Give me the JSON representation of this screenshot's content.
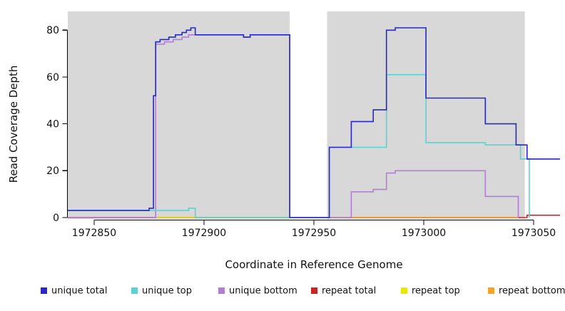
{
  "chart_data": {
    "type": "line",
    "subtype": "step",
    "title": "",
    "xlabel": "Coordinate in Reference Genome",
    "ylabel": "Read Coverage Depth",
    "xlim": [
      1972838,
      1973062
    ],
    "ylim": [
      0,
      88
    ],
    "xticks": [
      1972850,
      1972900,
      1972950,
      1973000,
      1973050
    ],
    "yticks": [
      0,
      20,
      40,
      60,
      80
    ],
    "grid": false,
    "legend_position": "bottom",
    "background_color": "#d8d8d8",
    "axis_color": "#000000",
    "shaded_regions": [
      {
        "from": 1972838,
        "to": 1972939
      },
      {
        "from": 1972956,
        "to": 1973046
      }
    ],
    "series": [
      {
        "name": "unique total",
        "color": "#2727cc",
        "points": [
          [
            1972838,
            3
          ],
          [
            1972875,
            4
          ],
          [
            1972877,
            52
          ],
          [
            1972878,
            75
          ],
          [
            1972880,
            76
          ],
          [
            1972884,
            77
          ],
          [
            1972887,
            78
          ],
          [
            1972890,
            79
          ],
          [
            1972892,
            80
          ],
          [
            1972894,
            81
          ],
          [
            1972896,
            78
          ],
          [
            1972918,
            77
          ],
          [
            1972921,
            78
          ],
          [
            1972939,
            0
          ],
          [
            1972957,
            30
          ],
          [
            1972967,
            41
          ],
          [
            1972977,
            46
          ],
          [
            1972983,
            80
          ],
          [
            1972987,
            81
          ],
          [
            1973001,
            51
          ],
          [
            1973028,
            40
          ],
          [
            1973042,
            31
          ],
          [
            1973047,
            25
          ],
          [
            1973062,
            25
          ]
        ]
      },
      {
        "name": "unique top",
        "color": "#5ad2d2",
        "points": [
          [
            1972838,
            3
          ],
          [
            1972893,
            4
          ],
          [
            1972896,
            0
          ],
          [
            1972939,
            0
          ],
          [
            1972957,
            30
          ],
          [
            1972983,
            61
          ],
          [
            1973001,
            32
          ],
          [
            1973028,
            31
          ],
          [
            1973044,
            25
          ],
          [
            1973048,
            0
          ]
        ]
      },
      {
        "name": "unique bottom",
        "color": "#b07fd4",
        "points": [
          [
            1972838,
            0
          ],
          [
            1972878,
            74
          ],
          [
            1972882,
            75
          ],
          [
            1972886,
            76
          ],
          [
            1972890,
            77
          ],
          [
            1972893,
            78
          ],
          [
            1972918,
            77
          ],
          [
            1972921,
            78
          ],
          [
            1972939,
            0
          ],
          [
            1972963,
            0
          ],
          [
            1972967,
            11
          ],
          [
            1972977,
            12
          ],
          [
            1972983,
            19
          ],
          [
            1972987,
            20
          ],
          [
            1973028,
            9
          ],
          [
            1973043,
            0
          ]
        ]
      },
      {
        "name": "repeat total",
        "color": "#cc2222",
        "points": [
          [
            1972838,
            0
          ],
          [
            1973046,
            0
          ],
          [
            1973047,
            1
          ],
          [
            1973062,
            1
          ]
        ]
      },
      {
        "name": "repeat top",
        "color": "#e8e800",
        "points": [
          [
            1972878,
            0
          ],
          [
            1972939,
            0
          ]
        ]
      },
      {
        "name": "repeat bottom",
        "color": "#f5a42a",
        "points": [
          [
            1972957,
            0
          ],
          [
            1973043,
            0
          ]
        ]
      }
    ]
  }
}
